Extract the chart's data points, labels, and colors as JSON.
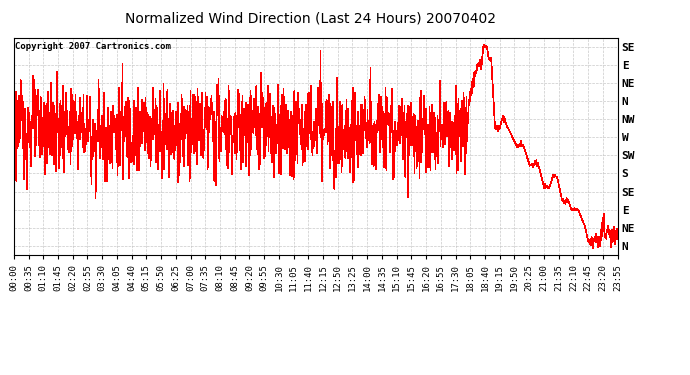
{
  "title": "Normalized Wind Direction (Last 24 Hours) 20070402",
  "copyright_text": "Copyright 2007 Cartronics.com",
  "line_color": "#FF0000",
  "bg_color": "#FFFFFF",
  "plot_bg_color": "#FFFFFF",
  "grid_color": "#BBBBBB",
  "ytick_labels": [
    "SE",
    "E",
    "NE",
    "N",
    "NW",
    "W",
    "SW",
    "S",
    "SE",
    "E",
    "NE",
    "N"
  ],
  "ytick_values": [
    11,
    10,
    9,
    8,
    7,
    6,
    5,
    4,
    3,
    2,
    1,
    0
  ],
  "ylim": [
    -0.5,
    11.5
  ],
  "xtick_labels": [
    "00:00",
    "00:35",
    "01:10",
    "01:45",
    "02:20",
    "02:55",
    "03:30",
    "04:05",
    "04:40",
    "05:15",
    "05:50",
    "06:25",
    "07:00",
    "07:35",
    "08:10",
    "08:45",
    "09:20",
    "09:55",
    "10:30",
    "11:05",
    "11:40",
    "12:15",
    "12:50",
    "13:25",
    "14:00",
    "14:35",
    "15:10",
    "15:45",
    "16:20",
    "16:55",
    "17:30",
    "18:05",
    "18:40",
    "19:15",
    "19:50",
    "20:25",
    "21:00",
    "21:35",
    "22:10",
    "22:45",
    "23:20",
    "23:55"
  ],
  "title_fontsize": 10,
  "tick_fontsize": 6.5,
  "ytick_fontsize": 8
}
